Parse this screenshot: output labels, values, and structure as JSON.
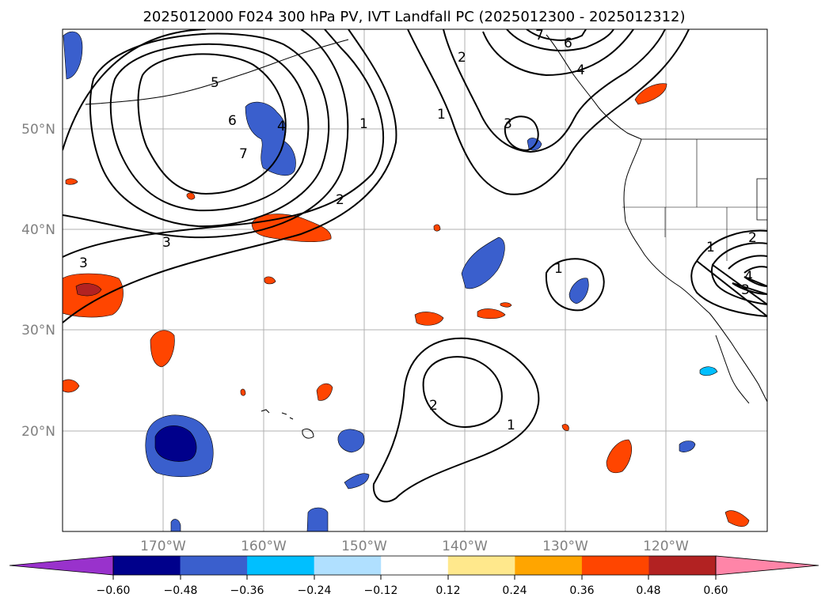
{
  "title": "2025012000 F024 300 hPa PV, IVT Landfall PC (2025012300 - 2025012312)",
  "map": {
    "lat_labels": [
      "50°N",
      "40°N",
      "30°N",
      "20°N"
    ],
    "lon_labels": [
      "170°W",
      "160°W",
      "150°W",
      "140°W",
      "130°W",
      "120°W"
    ],
    "contour_labels": [
      {
        "id": "c1a",
        "text": "1"
      },
      {
        "id": "c1b",
        "text": "1"
      },
      {
        "id": "c1c",
        "text": "1"
      },
      {
        "id": "c1d",
        "text": "1"
      },
      {
        "id": "c1e",
        "text": "1"
      },
      {
        "id": "c2a",
        "text": "2"
      },
      {
        "id": "c2b",
        "text": "2"
      },
      {
        "id": "c2c",
        "text": "2"
      },
      {
        "id": "c2d",
        "text": "2"
      },
      {
        "id": "c3a",
        "text": "3"
      },
      {
        "id": "c3b",
        "text": "3"
      },
      {
        "id": "c3c",
        "text": "3"
      },
      {
        "id": "c3d",
        "text": "3"
      },
      {
        "id": "c4a",
        "text": "4"
      },
      {
        "id": "c4b",
        "text": "4"
      },
      {
        "id": "c4c",
        "text": "4"
      },
      {
        "id": "c5a",
        "text": "5"
      },
      {
        "id": "c6a",
        "text": "6"
      },
      {
        "id": "c6b",
        "text": "6"
      },
      {
        "id": "c7a",
        "text": "7"
      },
      {
        "id": "c7b",
        "text": "7"
      }
    ]
  },
  "colorbar": {
    "ticks": [
      "−0.60",
      "−0.48",
      "−0.36",
      "−0.24",
      "−0.12",
      "0.12",
      "0.24",
      "0.36",
      "0.48",
      "0.60"
    ],
    "colors": [
      "#9932cc",
      "#00008b",
      "#3a5fcd",
      "#00bfff",
      "#b0e0ff",
      "#ffffff",
      "#ffe88c",
      "#ffa500",
      "#ff4500",
      "#b22222",
      "#ff85a8"
    ]
  },
  "palette": {
    "neg_strong": "#00008b",
    "neg": "#3a5fcd",
    "neg_light": "#00bfff",
    "neg_pale": "#b0e0ff",
    "pos_pale": "#ffe88c",
    "pos_light": "#ffa500",
    "pos": "#ff4500",
    "pos_strong": "#b22222"
  }
}
